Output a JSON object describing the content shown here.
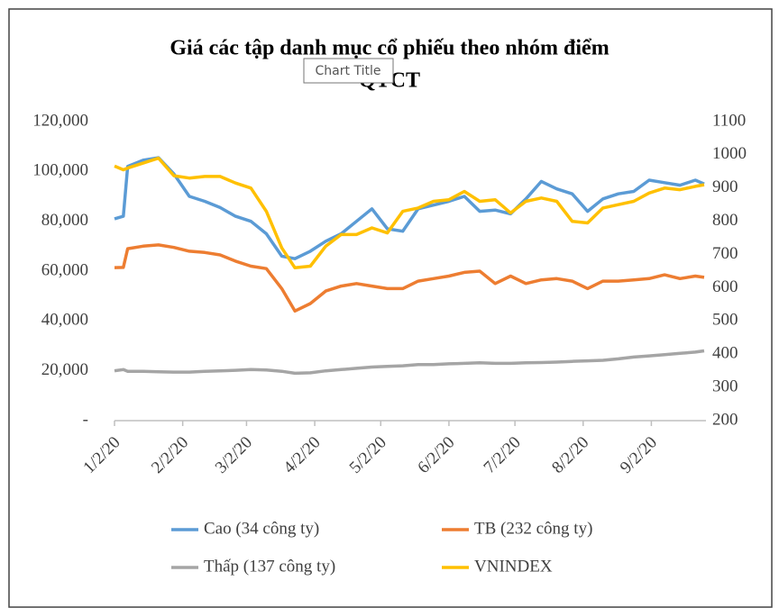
{
  "chart_data": {
    "type": "line",
    "title": [
      "Giá các tập danh mục cổ phiếu theo nhóm điểm",
      "QTCT"
    ],
    "tooltip": "Chart Title",
    "x": [
      "2020-01-02",
      "2020-01-06",
      "2020-01-08",
      "2020-01-15",
      "2020-01-22",
      "2020-01-29",
      "2020-02-05",
      "2020-02-12",
      "2020-02-19",
      "2020-02-26",
      "2020-03-04",
      "2020-03-11",
      "2020-03-18",
      "2020-03-24",
      "2020-03-31",
      "2020-04-07",
      "2020-04-14",
      "2020-04-21",
      "2020-04-28",
      "2020-05-05",
      "2020-05-12",
      "2020-05-19",
      "2020-05-26",
      "2020-06-02",
      "2020-06-09",
      "2020-06-16",
      "2020-06-23",
      "2020-06-30",
      "2020-07-07",
      "2020-07-14",
      "2020-07-21",
      "2020-07-28",
      "2020-08-04",
      "2020-08-11",
      "2020-08-18",
      "2020-08-25",
      "2020-09-01",
      "2020-09-08",
      "2020-09-15",
      "2020-09-22",
      "2020-09-26"
    ],
    "series": [
      {
        "name": "Cao (34 công ty)",
        "color": "#5b9bd5",
        "values": [
          81000,
          82000,
          102000,
          104500,
          105500,
          99000,
          90000,
          88000,
          85500,
          82000,
          80000,
          75000,
          66000,
          65000,
          68000,
          72000,
          75000,
          80000,
          85000,
          77000,
          76000,
          85000,
          86500,
          88000,
          90000,
          84000,
          84500,
          83000,
          89000,
          96000,
          93000,
          91000,
          84000,
          89000,
          91000,
          92000,
          96500,
          95500,
          94500,
          96500,
          95000
        ]
      },
      {
        "name": "TB (232 công ty)",
        "color": "#ed7d31",
        "values": [
          61400,
          61500,
          69000,
          70000,
          70500,
          69500,
          68000,
          67500,
          66500,
          64000,
          62000,
          61000,
          53000,
          44000,
          47000,
          52000,
          54000,
          55000,
          54000,
          53000,
          53000,
          56000,
          57000,
          58000,
          59500,
          60000,
          55000,
          58000,
          55000,
          56500,
          57000,
          56000,
          53000,
          56000,
          56000,
          56500,
          57000,
          58500,
          57000,
          58000,
          57500
        ]
      },
      {
        "name": "Thấp (137 công ty)",
        "color": "#a5a5a5",
        "values": [
          20000,
          20500,
          19800,
          19800,
          19600,
          19500,
          19500,
          19800,
          20000,
          20200,
          20500,
          20300,
          19800,
          19000,
          19200,
          20000,
          20500,
          21000,
          21500,
          21800,
          22000,
          22500,
          22500,
          22800,
          23000,
          23200,
          23000,
          23000,
          23200,
          23300,
          23500,
          23800,
          24000,
          24200,
          24800,
          25500,
          26000,
          26500,
          27000,
          27500,
          28000
        ]
      },
      {
        "name": "VNINDEX",
        "color": "#ffc000",
        "axis": "y2",
        "values": [
          966,
          955,
          960,
          975,
          990,
          937,
          930,
          935,
          935,
          915,
          900,
          830,
          720,
          660,
          665,
          725,
          760,
          760,
          780,
          765,
          830,
          840,
          860,
          865,
          890,
          860,
          865,
          825,
          860,
          870,
          860,
          800,
          795,
          840,
          850,
          860,
          885,
          900,
          895,
          905,
          910
        ]
      }
    ],
    "xlim": [
      "2020-01-02",
      "2020-09-26"
    ],
    "xticks": [
      {
        "value": "2020-01-02",
        "label": "1/2/20"
      },
      {
        "value": "2020-02-02",
        "label": "2/2/20"
      },
      {
        "value": "2020-03-02",
        "label": "3/2/20"
      },
      {
        "value": "2020-04-02",
        "label": "4/2/20"
      },
      {
        "value": "2020-05-02",
        "label": "5/2/20"
      },
      {
        "value": "2020-06-02",
        "label": "6/2/20"
      },
      {
        "value": "2020-07-02",
        "label": "7/2/20"
      },
      {
        "value": "2020-08-02",
        "label": "8/2/20"
      },
      {
        "value": "2020-09-02",
        "label": "9/2/20"
      }
    ],
    "ylim": [
      0,
      120000
    ],
    "yticks": [
      {
        "value": 0,
        "label": "-"
      },
      {
        "value": 20000,
        "label": "20,000"
      },
      {
        "value": 40000,
        "label": "40,000"
      },
      {
        "value": 60000,
        "label": "60,000"
      },
      {
        "value": 80000,
        "label": "80,000"
      },
      {
        "value": 100000,
        "label": "100,000"
      },
      {
        "value": 120000,
        "label": "120,000"
      }
    ],
    "y2lim": [
      200,
      1100
    ],
    "y2ticks": [
      200,
      300,
      400,
      500,
      600,
      700,
      800,
      900,
      1000,
      1100
    ],
    "grid": false
  }
}
